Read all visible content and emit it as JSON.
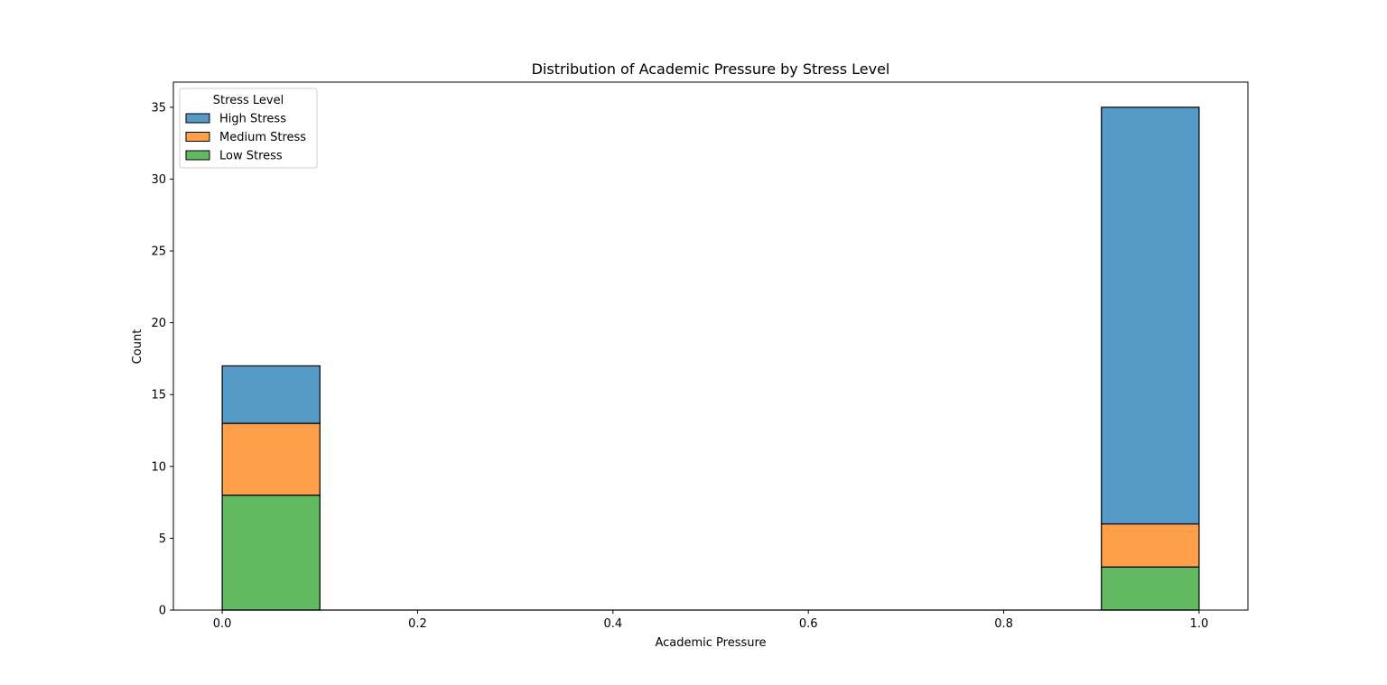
{
  "chart_data": {
    "type": "bar",
    "stacked": true,
    "title": "Distribution of Academic Pressure by Stress Level",
    "xlabel": "Academic Pressure",
    "ylabel": "Count",
    "xlim": [
      -0.05,
      1.05
    ],
    "ylim": [
      0,
      36.75
    ],
    "xticks": [
      0.0,
      0.2,
      0.4,
      0.6,
      0.8,
      1.0
    ],
    "xtick_labels": [
      "0.0",
      "0.2",
      "0.4",
      "0.6",
      "0.8",
      "1.0"
    ],
    "yticks": [
      0,
      5,
      10,
      15,
      20,
      25,
      30,
      35
    ],
    "ytick_labels": [
      "0",
      "5",
      "10",
      "15",
      "20",
      "25",
      "30",
      "35"
    ],
    "grid": false,
    "bins": [
      [
        0.0,
        0.1
      ],
      [
        0.1,
        0.2
      ],
      [
        0.2,
        0.3
      ],
      [
        0.3,
        0.4
      ],
      [
        0.4,
        0.5
      ],
      [
        0.5,
        0.6
      ],
      [
        0.6,
        0.7
      ],
      [
        0.7,
        0.8
      ],
      [
        0.8,
        0.9
      ],
      [
        0.9,
        1.0
      ]
    ],
    "series": [
      {
        "name": "Low Stress",
        "color": "#63b962",
        "values": [
          8,
          0,
          0,
          0,
          0,
          0,
          0,
          0,
          0,
          3
        ]
      },
      {
        "name": "Medium Stress",
        "color": "#ff9f4a",
        "values": [
          5,
          0,
          0,
          0,
          0,
          0,
          0,
          0,
          0,
          3
        ]
      },
      {
        "name": "High Stress",
        "color": "#569bc8",
        "values": [
          4,
          0,
          0,
          0,
          0,
          0,
          0,
          0,
          0,
          29
        ]
      }
    ],
    "legend": {
      "title": "Stress Level",
      "placement": "upper-left",
      "entries": [
        "High Stress",
        "Medium Stress",
        "Low Stress"
      ]
    }
  }
}
